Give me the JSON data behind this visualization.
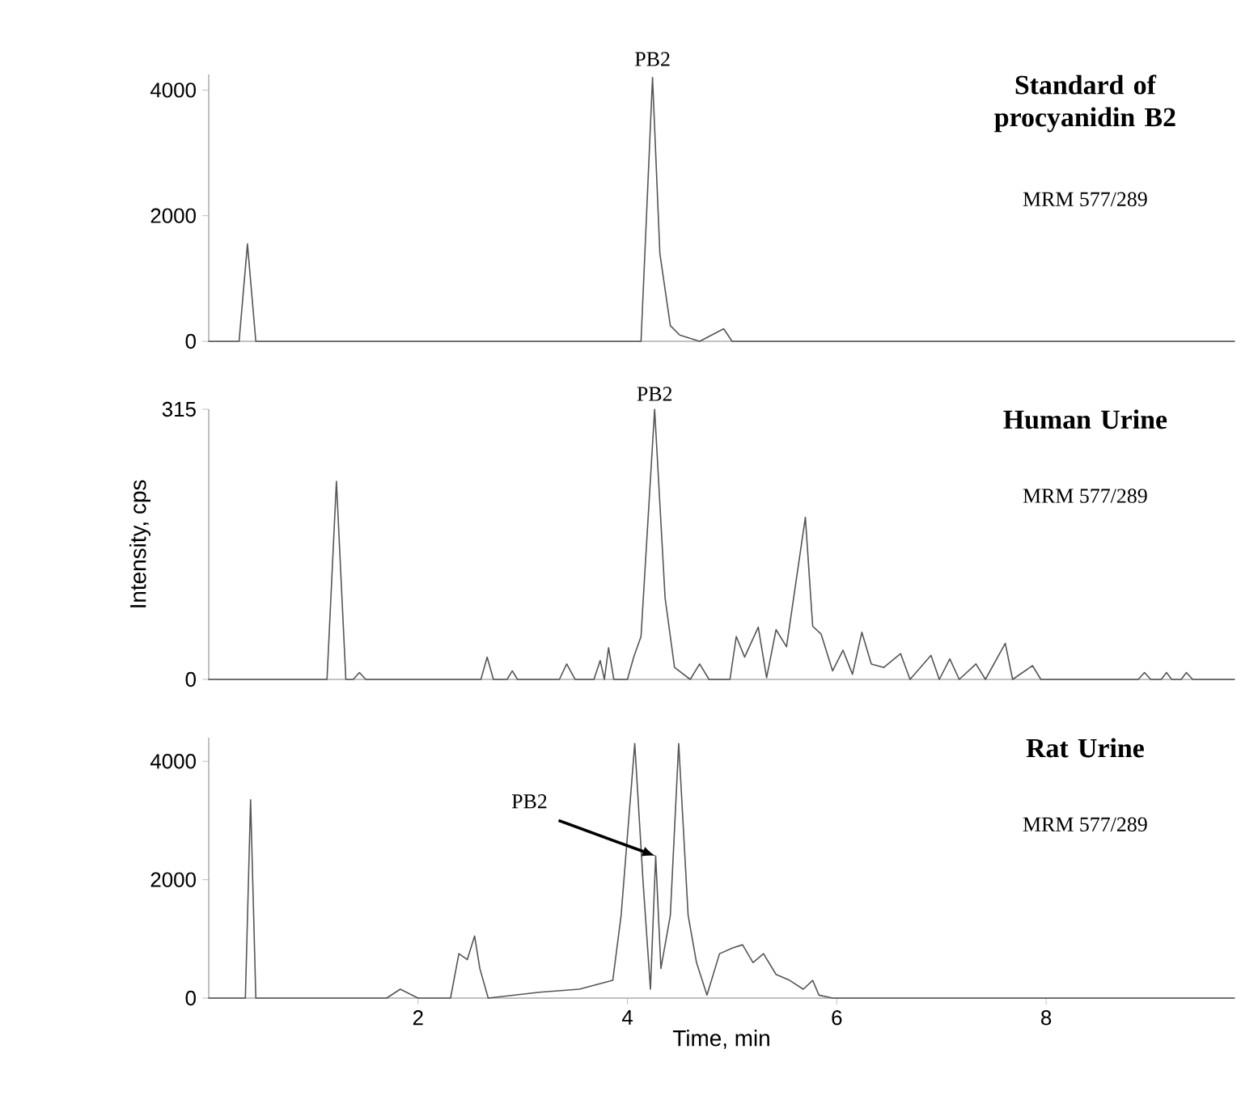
{
  "chart_data": [
    {
      "type": "line",
      "title": "Standard of procyanidin B2",
      "color": "#555555",
      "xlim": [
        0,
        9.8
      ],
      "ylim": [
        0,
        4250
      ],
      "yticks": [
        0,
        2000,
        4000
      ],
      "tick_labels": "y",
      "annotations": [
        {
          "text": "PB2",
          "x": 4.24,
          "y": 4200
        },
        "MRM 577/289"
      ],
      "x": [
        0,
        0.29,
        0.37,
        0.45,
        4.13,
        4.24,
        4.31,
        4.41,
        4.5,
        4.69,
        4.92,
        5.0,
        9.8
      ],
      "values": [
        0,
        0,
        1550,
        0,
        0,
        4200,
        1400,
        250,
        100,
        0,
        200,
        0,
        0
      ]
    },
    {
      "type": "line",
      "title": "Human Urine",
      "color": "#555555",
      "xlim": [
        0,
        9.8
      ],
      "ylim": [
        0,
        315
      ],
      "yticks": [
        0,
        315
      ],
      "tick_labels": "y",
      "ylabel": "Intensity, cps",
      "annotations": [
        {
          "text": "PB2",
          "x": 4.26,
          "y": 315
        },
        "MRM 577/289"
      ],
      "x": [
        0,
        1.13,
        1.22,
        1.31,
        1.38,
        1.44,
        1.5,
        2.6,
        2.66,
        2.72,
        2.85,
        2.9,
        2.95,
        3.35,
        3.42,
        3.5,
        3.68,
        3.74,
        3.78,
        3.82,
        3.87,
        4.0,
        4.06,
        4.13,
        4.26,
        4.36,
        4.45,
        4.6,
        4.69,
        4.78,
        4.98,
        5.04,
        5.12,
        5.25,
        5.33,
        5.42,
        5.52,
        5.7,
        5.77,
        5.85,
        5.96,
        6.06,
        6.15,
        6.24,
        6.33,
        6.45,
        6.61,
        6.7,
        6.9,
        6.98,
        7.08,
        7.17,
        7.33,
        7.42,
        7.61,
        7.68,
        7.87,
        7.95,
        8.88,
        8.94,
        9.0,
        9.1,
        9.15,
        9.2,
        9.29,
        9.34,
        9.4,
        9.8
      ],
      "values": [
        0,
        0,
        231,
        0,
        0,
        8,
        0,
        0,
        26,
        0,
        0,
        10,
        0,
        0,
        18,
        0,
        0,
        22,
        0,
        37,
        0,
        0,
        26,
        50,
        315,
        95,
        14,
        0,
        18,
        0,
        0,
        50,
        26,
        61,
        2,
        58,
        38,
        189,
        62,
        53,
        10,
        34,
        6,
        55,
        18,
        14,
        30,
        0,
        28,
        0,
        24,
        0,
        18,
        0,
        42,
        0,
        16,
        0,
        0,
        8,
        0,
        0,
        8,
        0,
        0,
        8,
        0,
        0
      ]
    },
    {
      "type": "line",
      "title": "Rat Urine",
      "color": "#555555",
      "xlim": [
        0,
        9.8
      ],
      "ylim": [
        0,
        4400
      ],
      "yticks": [
        0,
        2000,
        4000
      ],
      "xticks": [
        2,
        4,
        6,
        8
      ],
      "xlabel": "Time, min",
      "annotations": [
        {
          "text": "PB2",
          "x": 4.27,
          "y": 2400
        },
        "MRM 577/289"
      ],
      "x": [
        0,
        0.35,
        0.4,
        0.45,
        1.7,
        1.83,
        2.0,
        2.31,
        2.39,
        2.47,
        2.54,
        2.59,
        2.67,
        3.16,
        3.54,
        3.86,
        3.94,
        4.07,
        4.15,
        4.22,
        4.27,
        4.32,
        4.41,
        4.49,
        4.58,
        4.66,
        4.76,
        4.88,
        5.01,
        5.1,
        5.2,
        5.3,
        5.42,
        5.55,
        5.68,
        5.77,
        5.83,
        5.96,
        9.8
      ],
      "values": [
        0,
        0,
        3350,
        0,
        0,
        150,
        0,
        0,
        750,
        650,
        1050,
        500,
        0,
        100,
        150,
        300,
        1400,
        4300,
        1950,
        150,
        2400,
        500,
        1400,
        4300,
        1400,
        600,
        50,
        750,
        850,
        900,
        600,
        750,
        400,
        300,
        150,
        300,
        50,
        0,
        0
      ]
    }
  ]
}
